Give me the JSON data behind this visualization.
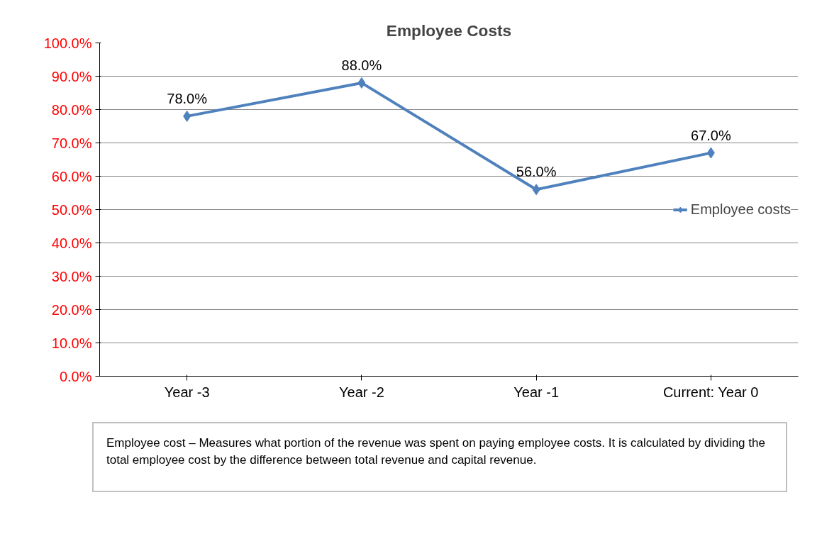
{
  "chart_data": {
    "type": "line",
    "title": "Employee Costs",
    "categories": [
      "Year -3",
      "Year -2",
      "Year -1",
      "Current: Year 0"
    ],
    "series": [
      {
        "name": "Employee costs",
        "color": "#4f81bd",
        "values": [
          78,
          88,
          56,
          67
        ],
        "value_labels": [
          "78.0%",
          "88.0%",
          "56.0%",
          "67.0%"
        ]
      }
    ],
    "ylim": [
      0,
      100
    ],
    "yticks": [
      {
        "value": 0,
        "label": "0.0%"
      },
      {
        "value": 10,
        "label": "10.0%"
      },
      {
        "value": 20,
        "label": "20.0%"
      },
      {
        "value": 30,
        "label": "30.0%"
      },
      {
        "value": 40,
        "label": "40.0%"
      },
      {
        "value": 50,
        "label": "50.0%"
      },
      {
        "value": 60,
        "label": "60.0%"
      },
      {
        "value": 70,
        "label": "70.0%"
      },
      {
        "value": 80,
        "label": "80.0%"
      },
      {
        "value": 90,
        "label": "90.0%"
      },
      {
        "value": 100,
        "label": "100.0%"
      }
    ],
    "grid": "y",
    "legend": "right",
    "marker": "diamond",
    "line_style": "solid",
    "annotations": [
      "Employee cost – Measures what portion of the revenue was spent on paying employee costs. It is calculated by dividing the total employee cost by the difference between total revenue and capital revenue."
    ]
  }
}
